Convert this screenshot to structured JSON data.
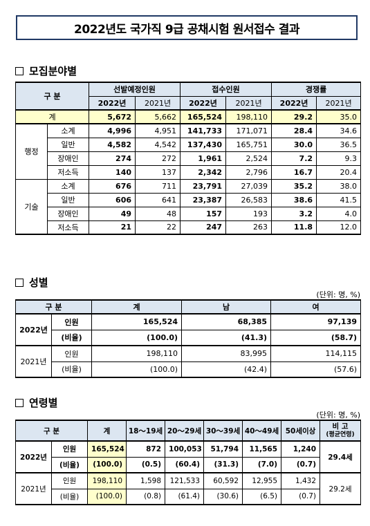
{
  "title": "2022년도 국가직 9급 공채시험 원서접수 결과",
  "section1": {
    "title": "모집분야별",
    "head": {
      "gubun": "구 분",
      "g1": "선발예정인원",
      "g2": "접수인원",
      "g3": "경쟁률",
      "y1": "2022년",
      "y2": "2021년"
    },
    "total": {
      "label": "계",
      "v": [
        "5,672",
        "5,662",
        "165,524",
        "198,110",
        "29.2",
        "35.0"
      ]
    },
    "groups": [
      {
        "name": "행정",
        "rows": [
          {
            "label": "소계",
            "v": [
              "4,996",
              "4,951",
              "141,733",
              "171,071",
              "28.4",
              "34.6"
            ]
          },
          {
            "label": "일반",
            "v": [
              "4,582",
              "4,542",
              "137,430",
              "165,751",
              "30.0",
              "36.5"
            ]
          },
          {
            "label": "장애인",
            "v": [
              "274",
              "272",
              "1,961",
              "2,524",
              "7.2",
              "9.3"
            ]
          },
          {
            "label": "저소득",
            "v": [
              "140",
              "137",
              "2,342",
              "2,796",
              "16.7",
              "20.4"
            ]
          }
        ]
      },
      {
        "name": "기술",
        "rows": [
          {
            "label": "소계",
            "v": [
              "676",
              "711",
              "23,791",
              "27,039",
              "35.2",
              "38.0"
            ]
          },
          {
            "label": "일반",
            "v": [
              "606",
              "641",
              "23,387",
              "26,583",
              "38.6",
              "41.5"
            ]
          },
          {
            "label": "장애인",
            "v": [
              "49",
              "48",
              "157",
              "193",
              "3.2",
              "4.0"
            ]
          },
          {
            "label": "저소득",
            "v": [
              "21",
              "22",
              "247",
              "263",
              "11.8",
              "12.0"
            ]
          }
        ]
      }
    ]
  },
  "section2": {
    "title": "성별",
    "unit": "(단위: 명, %)",
    "head": {
      "gubun": "구 분",
      "total": "계",
      "male": "남",
      "female": "여"
    },
    "years": [
      {
        "year": "2022년",
        "rows": [
          {
            "label": "인원",
            "v": [
              "165,524",
              "68,385",
              "97,139"
            ]
          },
          {
            "label": "(비율)",
            "v": [
              "(100.0)",
              "(41.3)",
              "(58.7)"
            ]
          }
        ]
      },
      {
        "year": "2021년",
        "rows": [
          {
            "label": "인원",
            "v": [
              "198,110",
              "83,995",
              "114,115"
            ]
          },
          {
            "label": "(비율)",
            "v": [
              "(100.0)",
              "(42.4)",
              "(57.6)"
            ]
          }
        ]
      }
    ]
  },
  "section3": {
    "title": "연령별",
    "unit": "(단위: 명, %)",
    "head": {
      "gubun": "구 분",
      "total": "계",
      "a1": "18～19세",
      "a2": "20～29세",
      "a3": "30～39세",
      "a4": "40～49세",
      "a5": "50세이상",
      "note": "비 고",
      "note_sub": "(평균연령)"
    },
    "years": [
      {
        "year": "2022년",
        "avg": "29.4세",
        "rows": [
          {
            "label": "인원",
            "v": [
              "165,524",
              "872",
              "100,053",
              "51,794",
              "11,565",
              "1,240"
            ]
          },
          {
            "label": "(비율)",
            "v": [
              "(100.0)",
              "(0.5)",
              "(60.4)",
              "(31.3)",
              "(7.0)",
              "(0.7)"
            ]
          }
        ]
      },
      {
        "year": "2021년",
        "avg": "29.2세",
        "rows": [
          {
            "label": "인원",
            "v": [
              "198,110",
              "1,598",
              "121,533",
              "60,592",
              "12,955",
              "1,432"
            ]
          },
          {
            "label": "(비율)",
            "v": [
              "(100.0)",
              "(0.8)",
              "(61.4)",
              "(30.6)",
              "(6.5)",
              "(0.7)"
            ]
          }
        ]
      }
    ]
  }
}
